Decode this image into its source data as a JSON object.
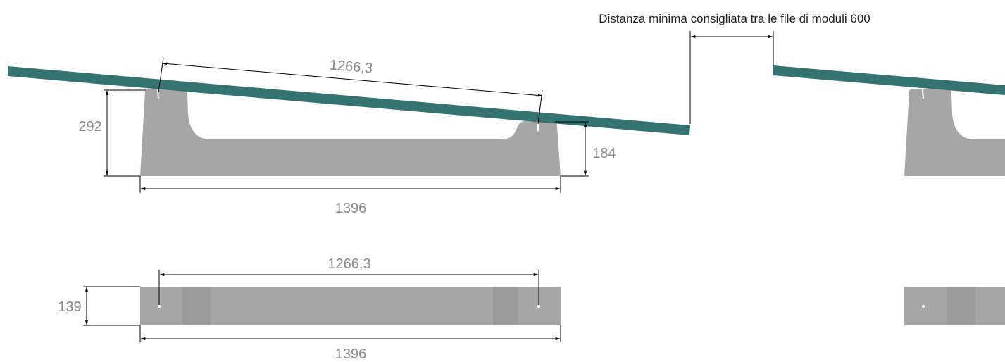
{
  "colors": {
    "panel": "#357370",
    "base": "#a6a6a6",
    "base_shade": "#9b9b9b",
    "base_light": "#ababab",
    "dim_text": "#8a8a8a",
    "note_text": "#222222",
    "lines": "#000000",
    "background": "#ffffff"
  },
  "side_view": {
    "module_span_label": "1266,3",
    "base_length_label": "1396",
    "front_height_label": "292",
    "rear_height_label": "184"
  },
  "top_view": {
    "hole_spacing_label": "1266,3",
    "base_length_label": "1396",
    "width_label": "139"
  },
  "spacing_note": {
    "text": "Distanza minima consigliata tra le file di moduli 600"
  }
}
